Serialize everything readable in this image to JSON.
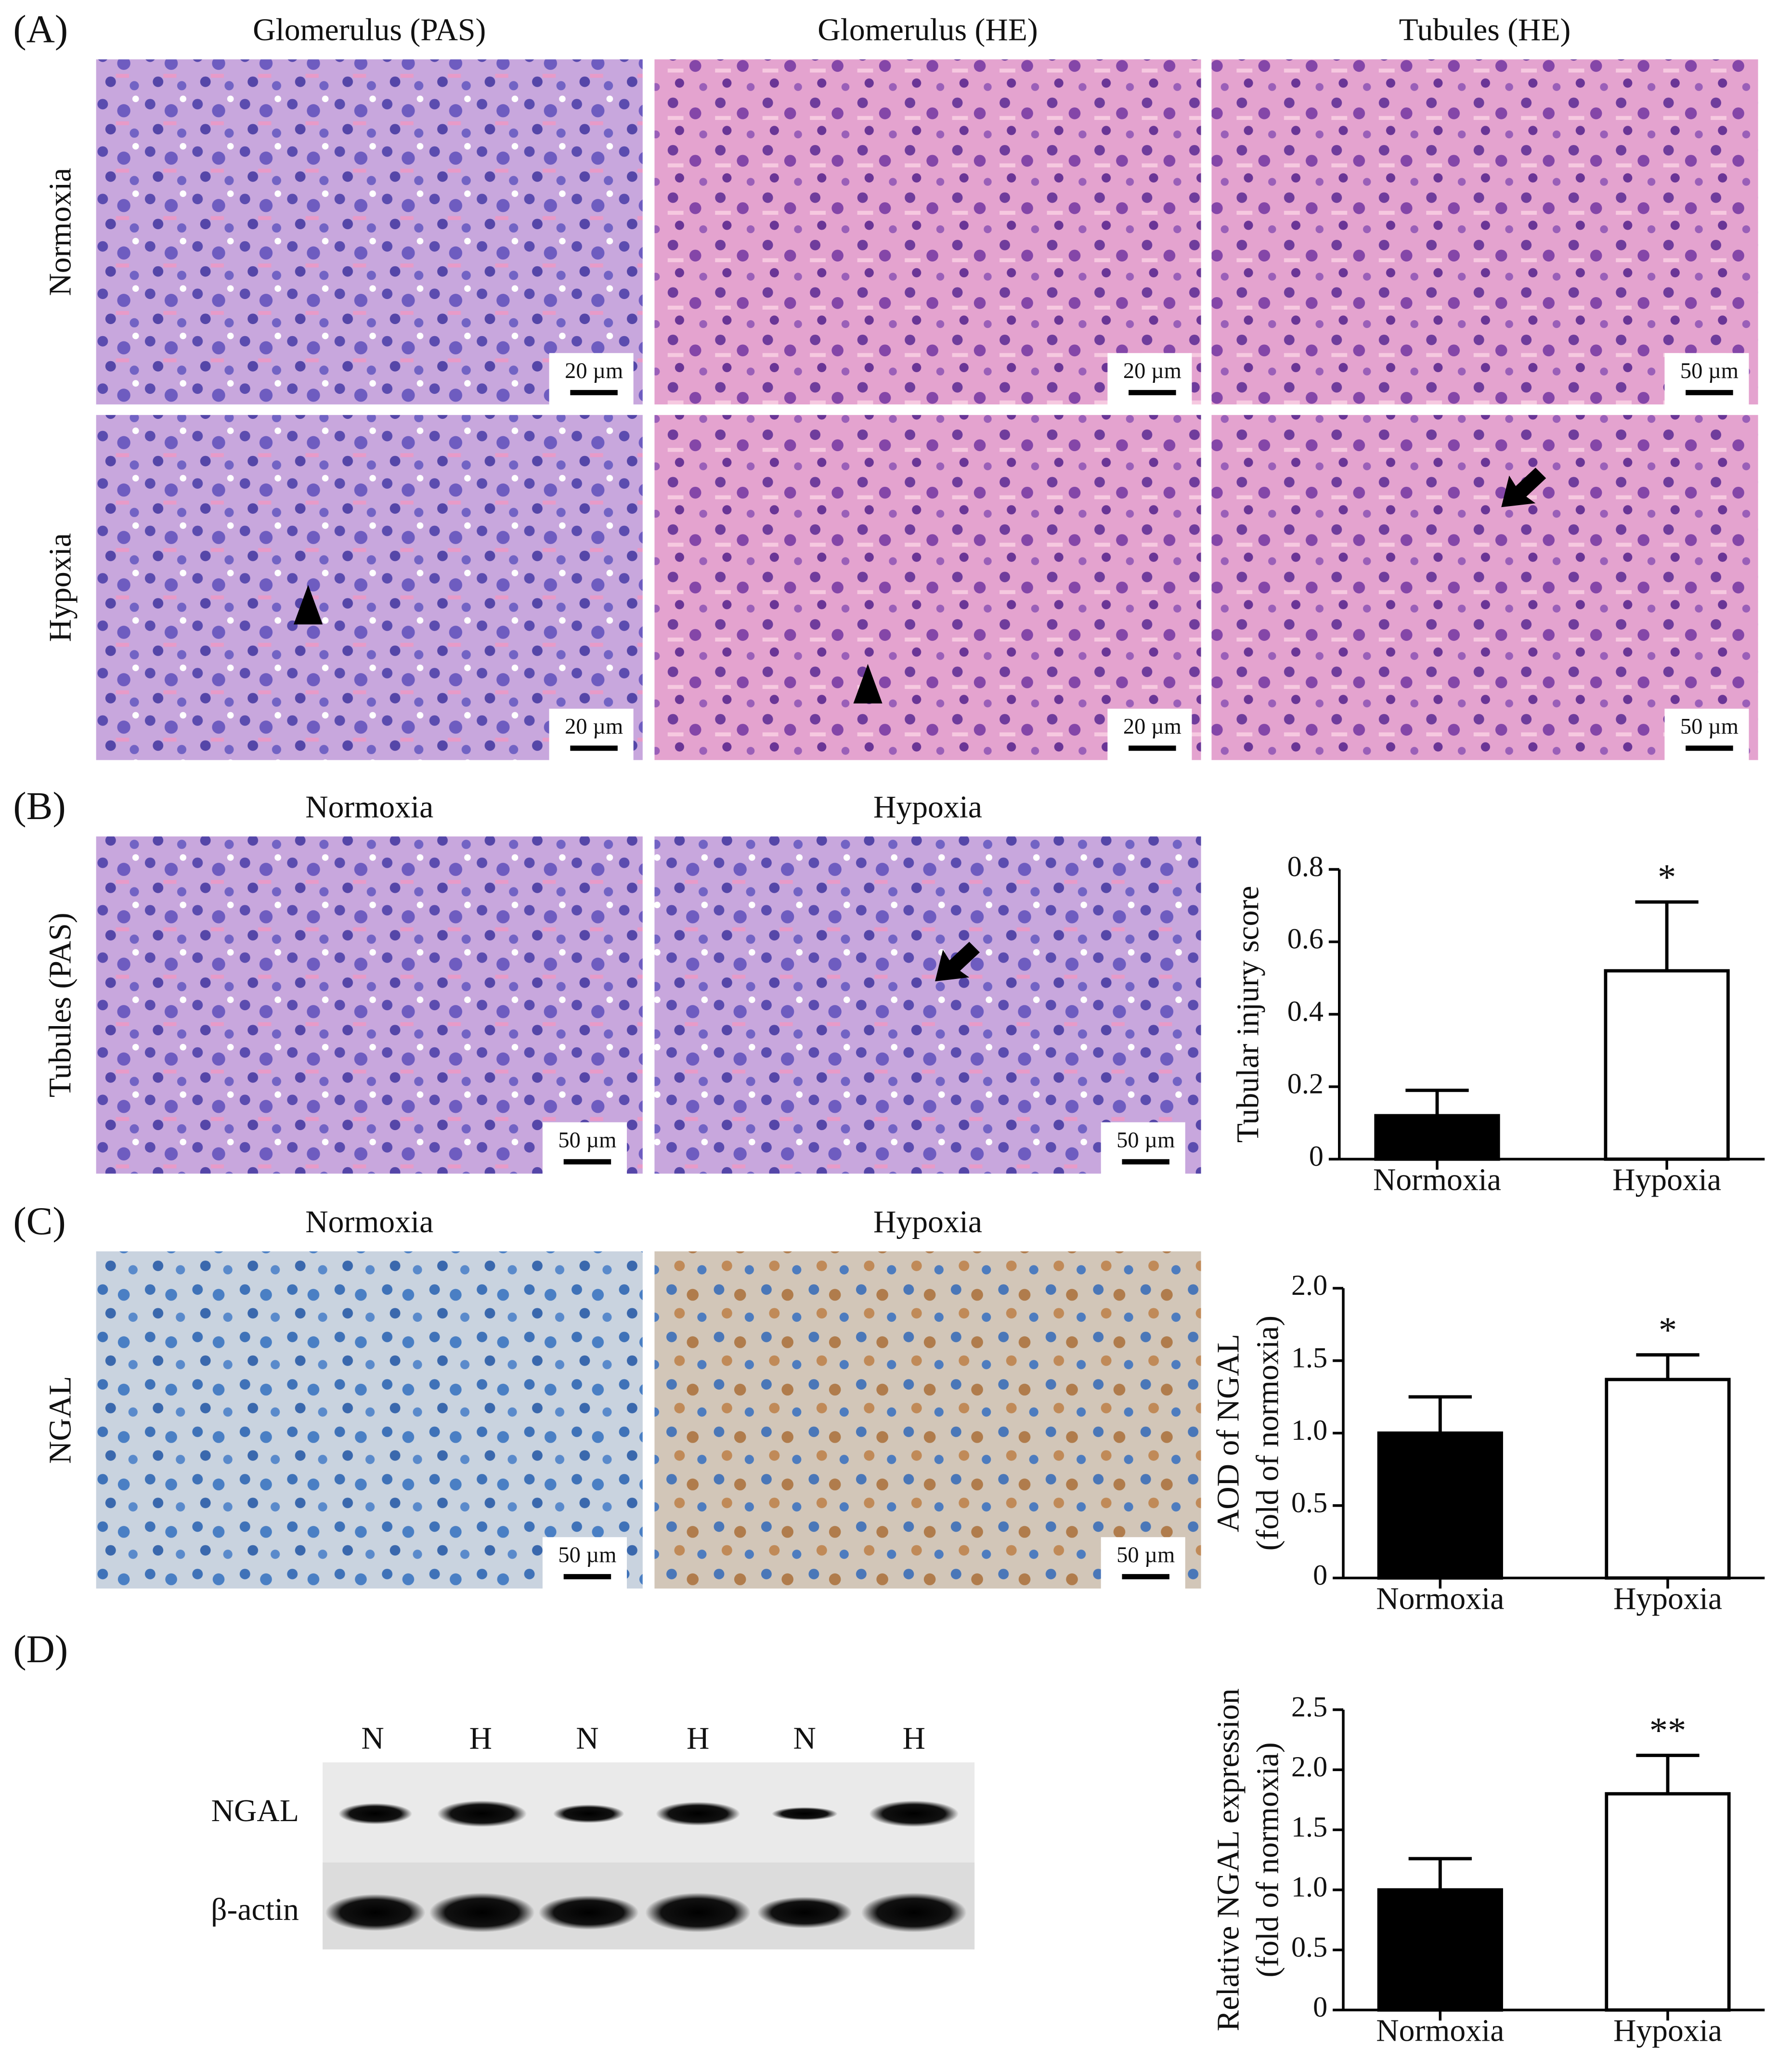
{
  "panel_labels": [
    "(A)",
    "(B)",
    "(C)",
    "(D)"
  ],
  "panel_a": {
    "columns": [
      "Glomerulus (PAS)",
      "Glomerulus (HE)",
      "Tubules (HE)"
    ],
    "rows": [
      "Normoxia",
      "Hypoxia"
    ],
    "scale_bars": [
      [
        "20 µm",
        "20 µm",
        "50 µm"
      ],
      [
        "20 µm",
        "20 µm",
        "50 µm"
      ]
    ]
  },
  "panel_b": {
    "columns": [
      "Normoxia",
      "Hypoxia"
    ],
    "row": "Tubules (PAS)",
    "scale_bars": [
      "50 µm",
      "50 µm"
    ]
  },
  "panel_c": {
    "columns": [
      "Normoxia",
      "Hypoxia"
    ],
    "row": "NGAL",
    "scale_bars": [
      "50 µm",
      "50 µm"
    ]
  },
  "panel_d": {
    "lanes": [
      "N",
      "H",
      "N",
      "H",
      "N",
      "H"
    ],
    "bands": [
      "NGAL",
      "β-actin"
    ]
  },
  "chart_data": [
    {
      "type": "bar",
      "ylabel": [
        "Tubular injury score"
      ],
      "categories": [
        "Normoxia",
        "Hypoxia"
      ],
      "values": [
        0.12,
        0.52
      ],
      "errors": [
        0.07,
        0.19
      ],
      "colors": [
        "#000000",
        "#ffffff"
      ],
      "significance": [
        null,
        "*"
      ],
      "ylim": [
        0,
        0.8
      ],
      "yticks": [
        0,
        0.2,
        0.4,
        0.6,
        0.8
      ]
    },
    {
      "type": "bar",
      "ylabel": [
        "AOD of NGAL",
        "(fold of normoxia)"
      ],
      "categories": [
        "Normoxia",
        "Hypoxia"
      ],
      "values": [
        1.0,
        1.37
      ],
      "errors": [
        0.25,
        0.17
      ],
      "colors": [
        "#000000",
        "#ffffff"
      ],
      "significance": [
        null,
        "*"
      ],
      "ylim": [
        0,
        2
      ],
      "yticks": [
        0,
        0.5,
        {
          "value": 1,
          "label": "1.0"
        },
        1.5,
        {
          "value": 2,
          "label": "2.0"
        }
      ]
    },
    {
      "type": "bar",
      "ylabel": [
        "Relative NGAL expression",
        "(fold of normoxia)"
      ],
      "categories": [
        "Normoxia",
        "Hypoxia"
      ],
      "values": [
        1.0,
        1.8
      ],
      "errors": [
        0.26,
        0.32
      ],
      "colors": [
        "#000000",
        "#ffffff"
      ],
      "significance": [
        null,
        "**"
      ],
      "ylim": [
        0,
        2.5
      ],
      "yticks": [
        0,
        0.5,
        {
          "value": 1,
          "label": "1.0"
        },
        1.5,
        {
          "value": 2,
          "label": "2.0"
        },
        2.5
      ]
    }
  ]
}
